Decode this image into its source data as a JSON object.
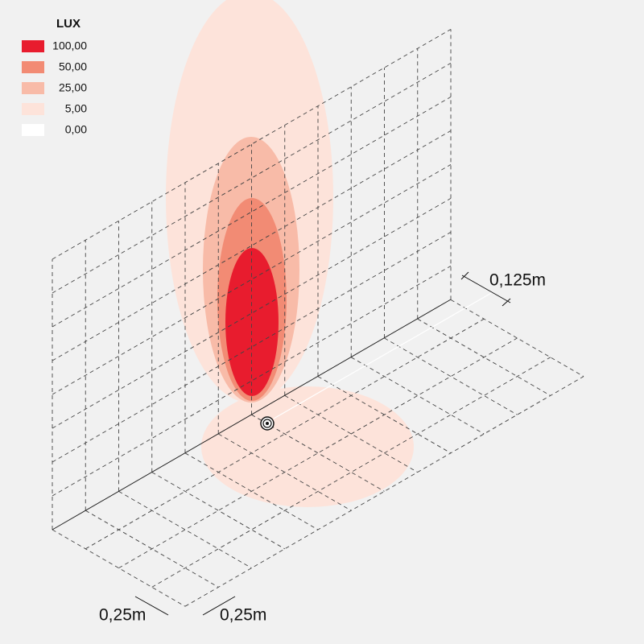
{
  "legend": {
    "title": "LUX",
    "items": [
      {
        "label": "100,00",
        "color": "#e81c2e"
      },
      {
        "label": "50,00",
        "color": "#f28b74"
      },
      {
        "label": "25,00",
        "color": "#f8bba8"
      },
      {
        "label": "5,00",
        "color": "#fde3da"
      },
      {
        "label": "0,00",
        "color": "#ffffff"
      }
    ]
  },
  "dimensions": {
    "height": "0,125m",
    "width": "0,25m",
    "depth": "0,25m"
  }
}
